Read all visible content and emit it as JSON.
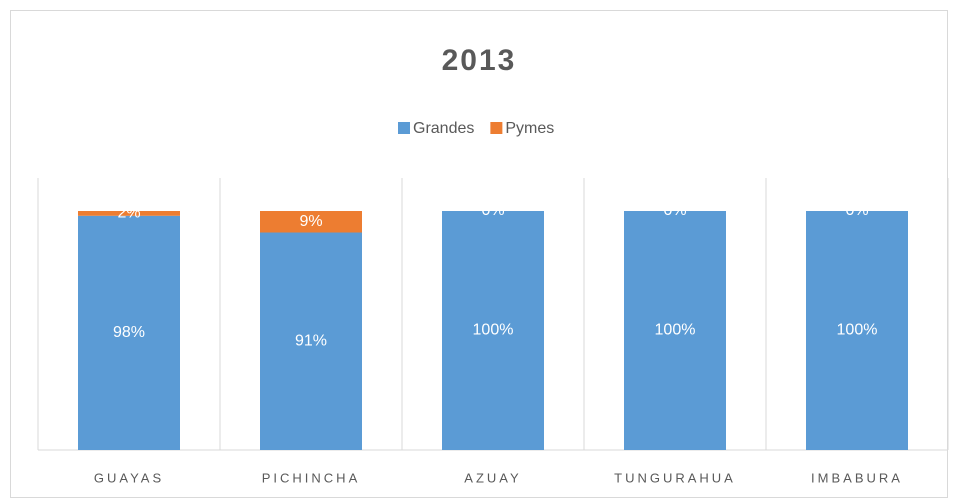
{
  "chart_data": {
    "type": "stacked_bar",
    "title": "2013",
    "categories": [
      "GUAYAS",
      "PICHINCHA",
      "AZUAY",
      "TUNGURAHUA",
      "IMBABURA"
    ],
    "series": [
      {
        "name": "Grandes",
        "color": "#5b9bd5",
        "values": [
          98,
          91,
          100,
          100,
          100
        ],
        "value_labels": [
          "98%",
          "91%",
          "100%",
          "100%",
          "100%"
        ]
      },
      {
        "name": "Pymes",
        "color": "#ed7d31",
        "values": [
          2,
          9,
          0,
          0,
          0
        ],
        "value_labels": [
          "2%",
          "9%",
          "0%",
          "0%",
          "0%"
        ]
      }
    ],
    "ylim": [
      0,
      100
    ],
    "legend": "top",
    "grid": true
  }
}
